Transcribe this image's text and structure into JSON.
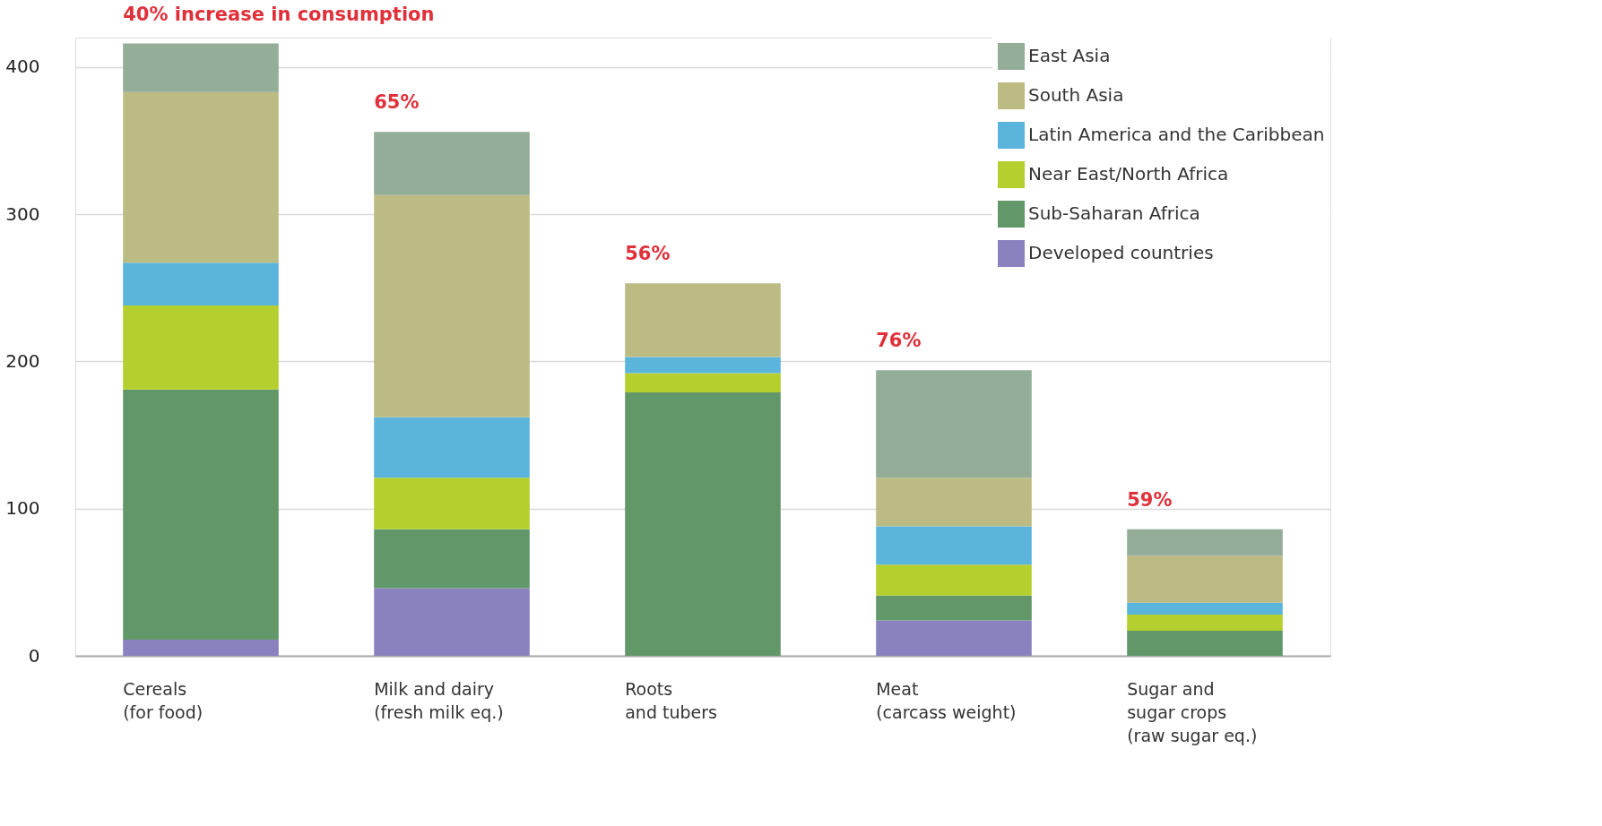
{
  "chart_data": {
    "type": "bar",
    "stacked": true,
    "categories": [
      "Cereals\n(for food)",
      "Milk and dairy\n(fresh milk eq.)",
      "Roots\nand tubers",
      "Meat\n(carcass weight)",
      "Sugar and\nsugar crops\n(raw sugar eq.)"
    ],
    "series": [
      {
        "name": "Developed countries",
        "color": "#8982be",
        "values": [
          11,
          46,
          0,
          24,
          0
        ]
      },
      {
        "name": "Sub-Saharan Africa",
        "color": "#62976a",
        "values": [
          170,
          40,
          179,
          17,
          17
        ]
      },
      {
        "name": "Near East/North Africa",
        "color": "#b5cf2e",
        "values": [
          57,
          35,
          13,
          21,
          11
        ]
      },
      {
        "name": "Latin America and the Caribbean",
        "color": "#5ab4dc",
        "values": [
          29,
          41,
          11,
          26,
          8
        ]
      },
      {
        "name": "South Asia",
        "color": "#bcbb83",
        "values": [
          116,
          151,
          50,
          33,
          32
        ]
      },
      {
        "name": "East Asia",
        "color": "#93ad98",
        "values": [
          33,
          43,
          0,
          73,
          18
        ]
      }
    ],
    "ylim": [
      0,
      420
    ],
    "yticks": [
      0,
      100,
      200,
      300,
      400
    ],
    "grid": "y",
    "legend": "top right",
    "annotations": [
      {
        "text": "40% increase in consumption",
        "x": "Cereals\n(for food)",
        "y": 416
      },
      {
        "text": "65%",
        "x": "Milk and dairy\n(fresh milk eq.)",
        "y": 356
      },
      {
        "text": "56%",
        "x": "Roots\nand tubers",
        "y": 253
      },
      {
        "text": "76%",
        "x": "Meat\n(carcass weight)",
        "y": 194
      },
      {
        "text": "59%",
        "x": "Sugar and\nsugar crops\n(raw sugar eq.)",
        "y": 86
      }
    ]
  }
}
